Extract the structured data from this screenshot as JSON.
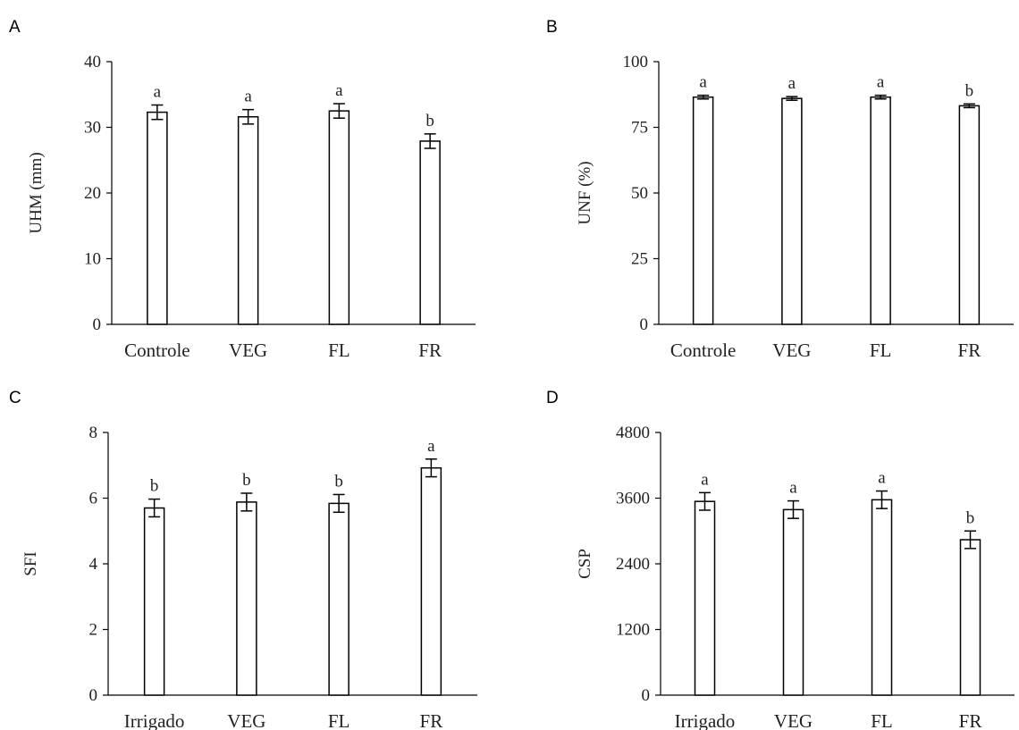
{
  "chart_data": [
    {
      "panel": "A",
      "type": "bar",
      "ylabel": "UHM (mm)",
      "ylim": [
        0,
        40
      ],
      "yticks": [
        0,
        10,
        20,
        30,
        40
      ],
      "categories": [
        "Controle",
        "VEG",
        "FL",
        "FR"
      ],
      "values": [
        32.3,
        31.6,
        32.5,
        27.9
      ],
      "errors": [
        1.1,
        1.1,
        1.1,
        1.1
      ],
      "letters": [
        "a",
        "a",
        "a",
        "b"
      ]
    },
    {
      "panel": "B",
      "type": "bar",
      "ylabel": "UNF (%)",
      "ylim": [
        0,
        100
      ],
      "yticks": [
        0,
        25,
        50,
        75,
        100
      ],
      "categories": [
        "Controle",
        "VEG",
        "FL",
        "FR"
      ],
      "values": [
        86.5,
        86.0,
        86.5,
        83.2
      ],
      "errors": [
        0.7,
        0.7,
        0.7,
        0.7
      ],
      "letters": [
        "a",
        "a",
        "a",
        "b"
      ]
    },
    {
      "panel": "C",
      "type": "bar",
      "ylabel": "SFI",
      "ylim": [
        0,
        8
      ],
      "yticks": [
        0,
        2,
        4,
        6,
        8
      ],
      "categories": [
        "Irrigado",
        "VEG",
        "FL",
        "FR"
      ],
      "values": [
        5.7,
        5.88,
        5.84,
        6.92
      ],
      "errors": [
        0.27,
        0.27,
        0.27,
        0.27
      ],
      "letters": [
        "b",
        "b",
        "b",
        "a"
      ]
    },
    {
      "panel": "D",
      "type": "bar",
      "ylabel": "CSP",
      "ylim": [
        0,
        4800
      ],
      "yticks": [
        0,
        1200,
        2400,
        3600,
        4800
      ],
      "categories": [
        "Irrigado",
        "VEG",
        "FL",
        "FR"
      ],
      "values": [
        3540,
        3390,
        3570,
        2840
      ],
      "errors": [
        160,
        160,
        160,
        160
      ],
      "letters": [
        "a",
        "a",
        "a",
        "b"
      ]
    }
  ]
}
